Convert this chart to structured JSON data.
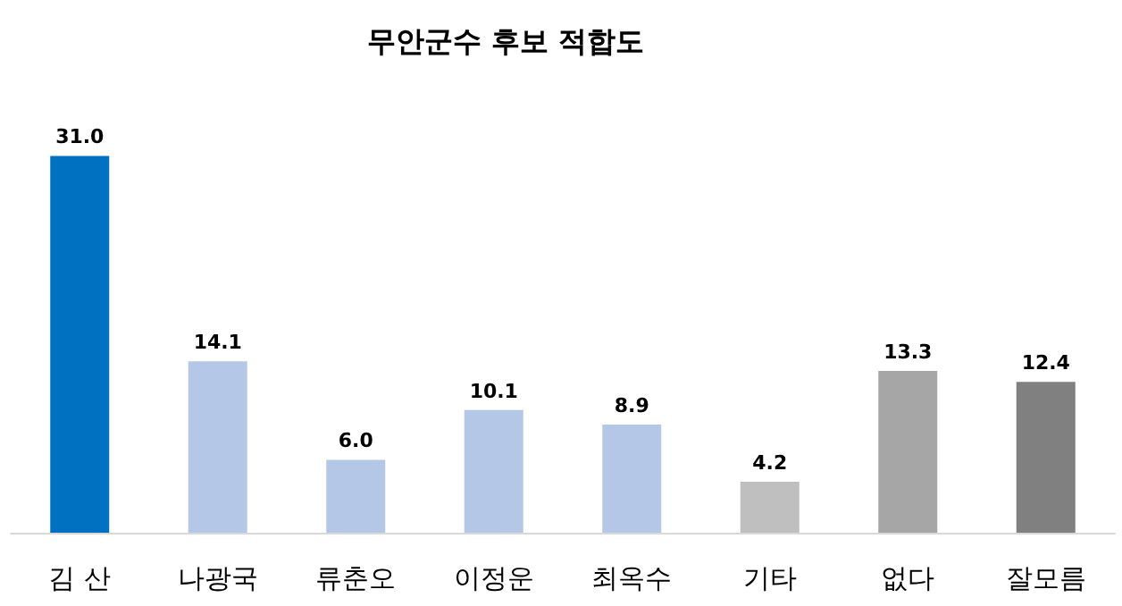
{
  "chart_data": {
    "type": "bar",
    "title": "무안군수 후보 적합도",
    "categories": [
      "김 산",
      "나광국",
      "류춘오",
      "이정운",
      "최옥수",
      "기타",
      "없다",
      "잘모름"
    ],
    "values": [
      31.0,
      14.1,
      6.0,
      10.1,
      8.9,
      4.2,
      13.3,
      12.4
    ],
    "colors": [
      "#0070c0",
      "#b4c7e7",
      "#b4c7e7",
      "#b4c7e7",
      "#b4c7e7",
      "#bfbfbf",
      "#a6a6a6",
      "#808080"
    ],
    "value_labels": [
      "31.0",
      "14.1",
      "6.0",
      "10.1",
      "8.9",
      "4.2",
      "13.3",
      "12.4"
    ]
  }
}
